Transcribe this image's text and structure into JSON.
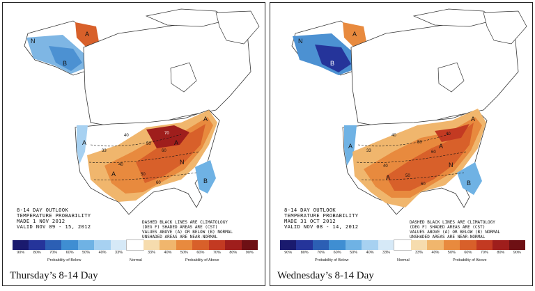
{
  "panels": [
    {
      "caption": "Thursday’s 8-14 Day",
      "outlook": {
        "line1": "8-14 DAY OUTLOOK",
        "line2": "TEMPERATURE PROBABILITY",
        "line3": "MADE  1 NOV 2012",
        "line4": "VALID  NOV 09 - 15, 2012"
      },
      "map_labels": {
        "n_alaska": "N",
        "b_alaska": "B",
        "a_alaska": "A",
        "a_nw": "A",
        "a_sw": "A",
        "a_east": "A",
        "n_center": "N",
        "b_florida": "B",
        "a_northeast": "A",
        "c1": "40",
        "c2": "50",
        "c3": "60",
        "c4": "70",
        "c5": "33",
        "c6": "40",
        "c7": "50",
        "c8": "60"
      }
    },
    {
      "caption": "Wednesday’s 8-14 Day",
      "outlook": {
        "line1": "8-14 DAY OUTLOOK",
        "line2": "TEMPERATURE PROBABILITY",
        "line3": "MADE  31 OCT 2012",
        "line4": "VALID  NOV 08 - 14, 2012"
      },
      "map_labels": {
        "n_alaska": "N",
        "b_alaska": "B",
        "a_alaska": "A",
        "a_nw": "A",
        "a_sw": "A",
        "a_east": "A",
        "n_center": "N",
        "b_florida": "B",
        "a_northeast": "A",
        "c1": "40",
        "c2": "50",
        "c3": "60",
        "c4": "40",
        "c5": "33",
        "c6": "40",
        "c7": "50",
        "c8": "60"
      }
    }
  ],
  "legend_note": {
    "line1": "DASHED BLACK LINES ARE CLIMATOLOGY",
    "line2": "(DEG F) SHADED AREAS ARE (CST)",
    "line3": "VALUES ABOVE (A) OR BELOW (B) NORMAL",
    "line4": "UNSHADED AREAS ARE NEAR-NORMAL"
  },
  "scale": {
    "labels": [
      "90%",
      "80%",
      "70%",
      "60%",
      "50%",
      "40%",
      "33%",
      "",
      "33%",
      "40%",
      "50%",
      "60%",
      "70%",
      "80%",
      "90%"
    ],
    "colors": [
      "#1a1a6e",
      "#25349a",
      "#2c5fb4",
      "#3f8ed2",
      "#6fb2e4",
      "#a7d1f1",
      "#d6e9f7",
      "#ffffff",
      "#f6dcae",
      "#f0b66d",
      "#e88a3e",
      "#d8602a",
      "#c33a22",
      "#9f1e1c",
      "#6e1014"
    ],
    "below_label": "Probability of Below",
    "normal_label": "Normal",
    "above_label": "Probability of Above"
  }
}
